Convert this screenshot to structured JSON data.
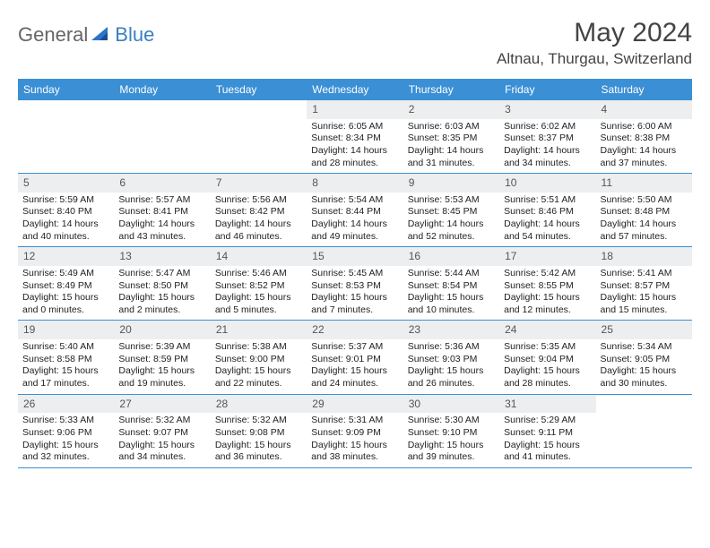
{
  "brand": {
    "part1": "General",
    "part2": "Blue"
  },
  "title": "May 2024",
  "location": "Altnau, Thurgau, Switzerland",
  "colors": {
    "header_bar": "#3b8fd4",
    "daynum_bg": "#eceeef",
    "text": "#222222",
    "brand_gray": "#666666",
    "brand_blue": "#3b7fc4"
  },
  "weekdays": [
    "Sunday",
    "Monday",
    "Tuesday",
    "Wednesday",
    "Thursday",
    "Friday",
    "Saturday"
  ],
  "weeks": [
    [
      {
        "n": "",
        "sr": "",
        "ss": "",
        "dl": ""
      },
      {
        "n": "",
        "sr": "",
        "ss": "",
        "dl": ""
      },
      {
        "n": "",
        "sr": "",
        "ss": "",
        "dl": ""
      },
      {
        "n": "1",
        "sr": "6:05 AM",
        "ss": "8:34 PM",
        "dl": "14 hours and 28 minutes."
      },
      {
        "n": "2",
        "sr": "6:03 AM",
        "ss": "8:35 PM",
        "dl": "14 hours and 31 minutes."
      },
      {
        "n": "3",
        "sr": "6:02 AM",
        "ss": "8:37 PM",
        "dl": "14 hours and 34 minutes."
      },
      {
        "n": "4",
        "sr": "6:00 AM",
        "ss": "8:38 PM",
        "dl": "14 hours and 37 minutes."
      }
    ],
    [
      {
        "n": "5",
        "sr": "5:59 AM",
        "ss": "8:40 PM",
        "dl": "14 hours and 40 minutes."
      },
      {
        "n": "6",
        "sr": "5:57 AM",
        "ss": "8:41 PM",
        "dl": "14 hours and 43 minutes."
      },
      {
        "n": "7",
        "sr": "5:56 AM",
        "ss": "8:42 PM",
        "dl": "14 hours and 46 minutes."
      },
      {
        "n": "8",
        "sr": "5:54 AM",
        "ss": "8:44 PM",
        "dl": "14 hours and 49 minutes."
      },
      {
        "n": "9",
        "sr": "5:53 AM",
        "ss": "8:45 PM",
        "dl": "14 hours and 52 minutes."
      },
      {
        "n": "10",
        "sr": "5:51 AM",
        "ss": "8:46 PM",
        "dl": "14 hours and 54 minutes."
      },
      {
        "n": "11",
        "sr": "5:50 AM",
        "ss": "8:48 PM",
        "dl": "14 hours and 57 minutes."
      }
    ],
    [
      {
        "n": "12",
        "sr": "5:49 AM",
        "ss": "8:49 PM",
        "dl": "15 hours and 0 minutes."
      },
      {
        "n": "13",
        "sr": "5:47 AM",
        "ss": "8:50 PM",
        "dl": "15 hours and 2 minutes."
      },
      {
        "n": "14",
        "sr": "5:46 AM",
        "ss": "8:52 PM",
        "dl": "15 hours and 5 minutes."
      },
      {
        "n": "15",
        "sr": "5:45 AM",
        "ss": "8:53 PM",
        "dl": "15 hours and 7 minutes."
      },
      {
        "n": "16",
        "sr": "5:44 AM",
        "ss": "8:54 PM",
        "dl": "15 hours and 10 minutes."
      },
      {
        "n": "17",
        "sr": "5:42 AM",
        "ss": "8:55 PM",
        "dl": "15 hours and 12 minutes."
      },
      {
        "n": "18",
        "sr": "5:41 AM",
        "ss": "8:57 PM",
        "dl": "15 hours and 15 minutes."
      }
    ],
    [
      {
        "n": "19",
        "sr": "5:40 AM",
        "ss": "8:58 PM",
        "dl": "15 hours and 17 minutes."
      },
      {
        "n": "20",
        "sr": "5:39 AM",
        "ss": "8:59 PM",
        "dl": "15 hours and 19 minutes."
      },
      {
        "n": "21",
        "sr": "5:38 AM",
        "ss": "9:00 PM",
        "dl": "15 hours and 22 minutes."
      },
      {
        "n": "22",
        "sr": "5:37 AM",
        "ss": "9:01 PM",
        "dl": "15 hours and 24 minutes."
      },
      {
        "n": "23",
        "sr": "5:36 AM",
        "ss": "9:03 PM",
        "dl": "15 hours and 26 minutes."
      },
      {
        "n": "24",
        "sr": "5:35 AM",
        "ss": "9:04 PM",
        "dl": "15 hours and 28 minutes."
      },
      {
        "n": "25",
        "sr": "5:34 AM",
        "ss": "9:05 PM",
        "dl": "15 hours and 30 minutes."
      }
    ],
    [
      {
        "n": "26",
        "sr": "5:33 AM",
        "ss": "9:06 PM",
        "dl": "15 hours and 32 minutes."
      },
      {
        "n": "27",
        "sr": "5:32 AM",
        "ss": "9:07 PM",
        "dl": "15 hours and 34 minutes."
      },
      {
        "n": "28",
        "sr": "5:32 AM",
        "ss": "9:08 PM",
        "dl": "15 hours and 36 minutes."
      },
      {
        "n": "29",
        "sr": "5:31 AM",
        "ss": "9:09 PM",
        "dl": "15 hours and 38 minutes."
      },
      {
        "n": "30",
        "sr": "5:30 AM",
        "ss": "9:10 PM",
        "dl": "15 hours and 39 minutes."
      },
      {
        "n": "31",
        "sr": "5:29 AM",
        "ss": "9:11 PM",
        "dl": "15 hours and 41 minutes."
      },
      {
        "n": "",
        "sr": "",
        "ss": "",
        "dl": ""
      }
    ]
  ],
  "labels": {
    "sunrise": "Sunrise:",
    "sunset": "Sunset:",
    "daylight": "Daylight:"
  }
}
